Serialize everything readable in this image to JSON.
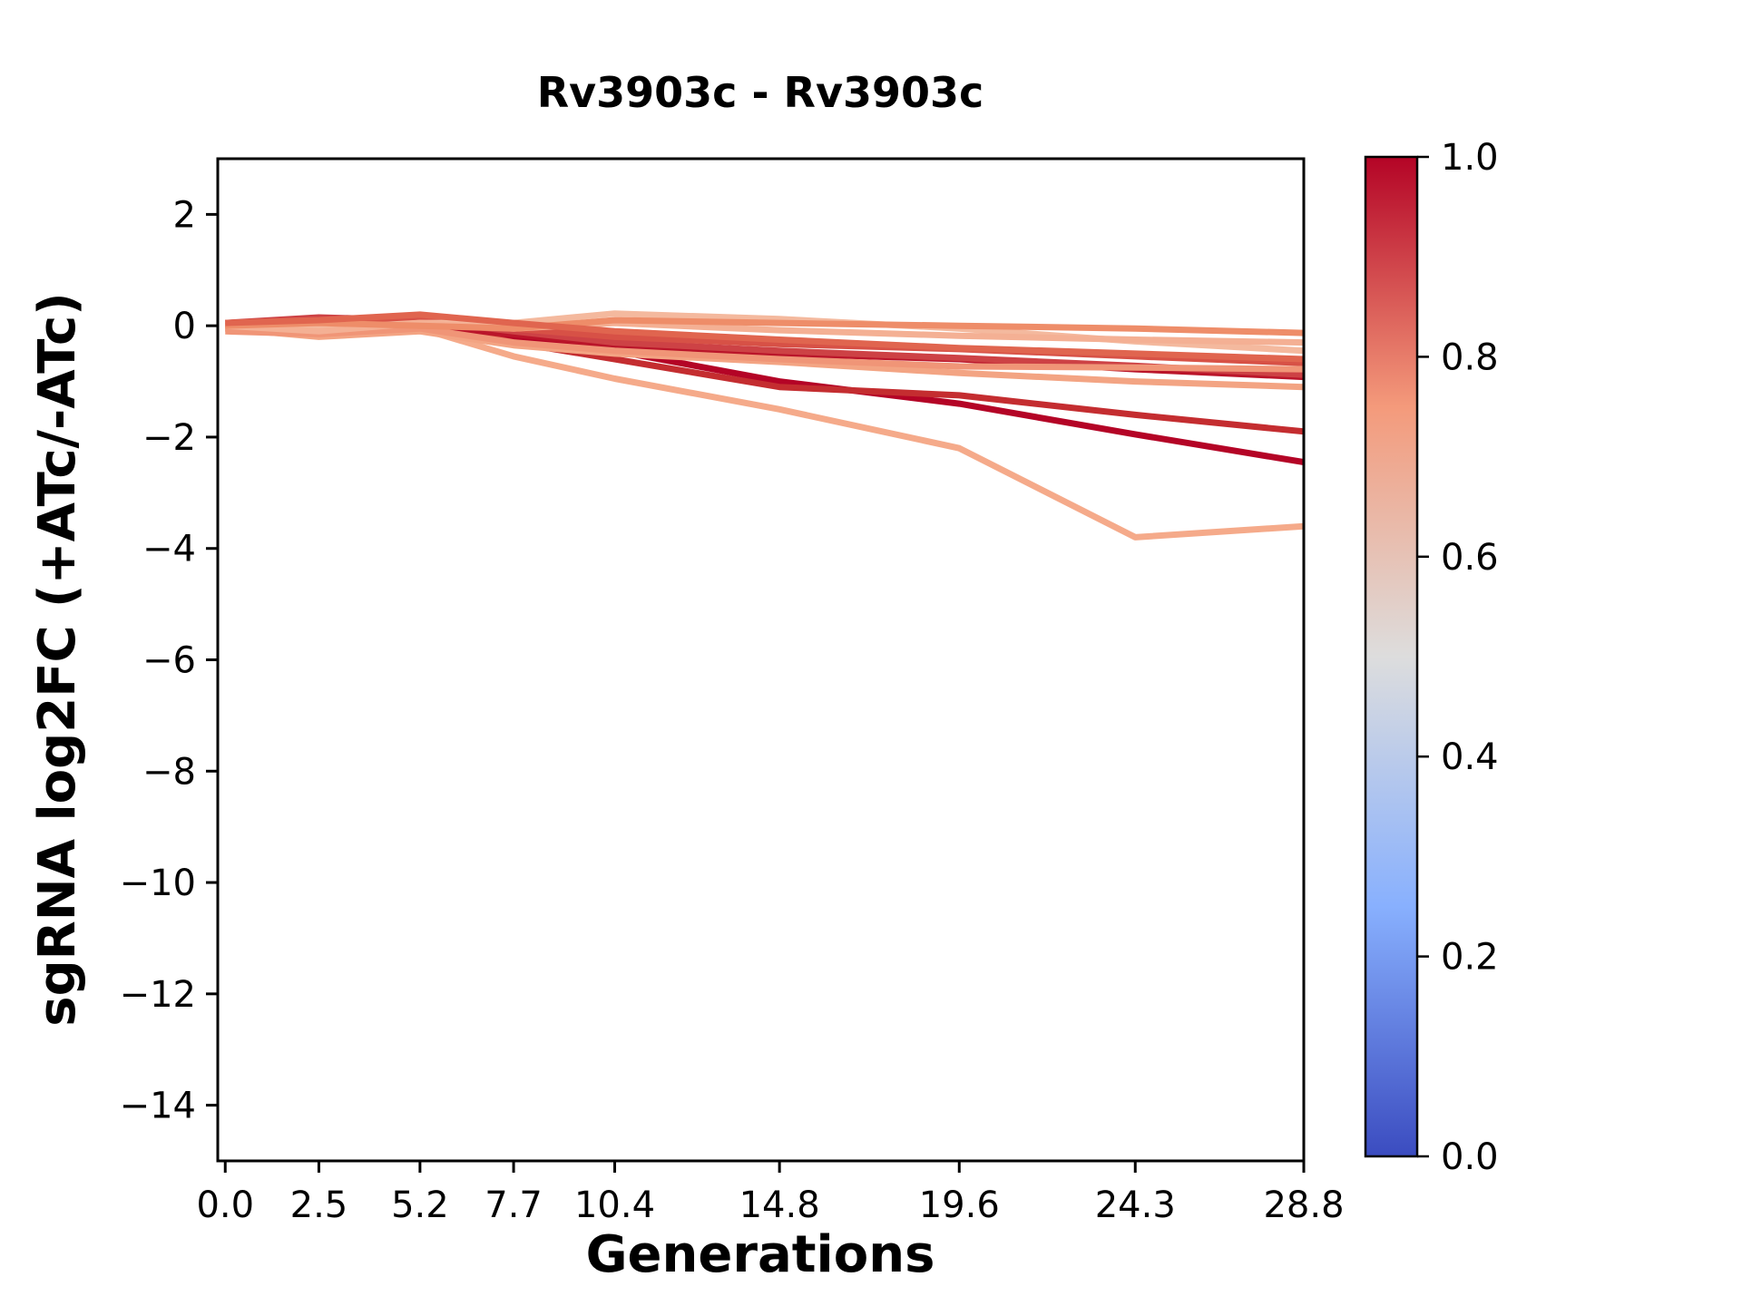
{
  "chart_data": {
    "type": "line",
    "title": "Rv3903c - Rv3903c",
    "xlabel": "Generations",
    "ylabel": "sgRNA log2FC (+ATc/-ATc)",
    "xlim": [
      -0.2,
      28.8
    ],
    "ylim": [
      -15,
      3
    ],
    "grid": false,
    "legend": "none",
    "x": [
      0.0,
      2.5,
      5.2,
      7.7,
      10.4,
      14.8,
      19.6,
      24.3,
      28.8
    ],
    "xticks": {
      "values": [
        0.0,
        2.5,
        5.2,
        7.7,
        10.4,
        14.8,
        19.6,
        24.3,
        28.8
      ],
      "labels": [
        "0.0",
        "2.5",
        "5.2",
        "7.7",
        "10.4",
        "14.8",
        "19.6",
        "24.3",
        "28.8"
      ]
    },
    "yticks": {
      "values": [
        2,
        0,
        -2,
        -4,
        -6,
        -8,
        -10,
        -12,
        -14
      ],
      "labels": [
        "2",
        "0",
        "−2",
        "−4",
        "−6",
        "−8",
        "−10",
        "−12",
        "−14"
      ]
    },
    "series": [
      {
        "colormap_value": 1.0,
        "color": "#b40426",
        "y": [
          0.0,
          0.1,
          0.05,
          -0.2,
          -0.45,
          -1.0,
          -1.4,
          -1.95,
          -2.45
        ]
      },
      {
        "colormap_value": 0.93,
        "color": "#c42d30",
        "y": [
          -0.05,
          0.05,
          0.1,
          -0.3,
          -0.6,
          -1.1,
          -1.25,
          -1.6,
          -1.9
        ]
      },
      {
        "colormap_value": 0.66,
        "color": "#f5aa8a",
        "y": [
          0.0,
          -0.15,
          -0.05,
          -0.55,
          -0.95,
          -1.5,
          -2.2,
          -3.8,
          -3.6
        ]
      },
      {
        "colormap_value": 0.68,
        "color": "#f3a483",
        "y": [
          -0.05,
          -0.2,
          -0.1,
          -0.35,
          -0.5,
          -0.65,
          -0.85,
          -1.0,
          -1.1
        ]
      },
      {
        "colormap_value": 0.97,
        "color": "#ba152a",
        "y": [
          0.0,
          0.1,
          0.0,
          -0.15,
          -0.35,
          -0.5,
          -0.6,
          -0.78,
          -0.92
        ]
      },
      {
        "colormap_value": 0.9,
        "color": "#cd4245",
        "y": [
          0.05,
          0.15,
          0.1,
          -0.1,
          -0.3,
          -0.45,
          -0.58,
          -0.72,
          -0.88
        ]
      },
      {
        "colormap_value": 0.87,
        "color": "#d75146",
        "y": [
          0.0,
          0.1,
          0.15,
          -0.05,
          -0.2,
          -0.33,
          -0.42,
          -0.55,
          -0.67
        ]
      },
      {
        "colormap_value": 0.73,
        "color": "#f09577",
        "y": [
          -0.1,
          -0.15,
          -0.05,
          -0.3,
          -0.45,
          -0.6,
          -0.73,
          -0.75,
          -0.78
        ]
      },
      {
        "colormap_value": 0.62,
        "color": "#f4b99e",
        "y": [
          0.05,
          -0.05,
          0.05,
          0.05,
          0.22,
          0.12,
          -0.05,
          -0.28,
          -0.45
        ]
      },
      {
        "colormap_value": 0.64,
        "color": "#f4b094",
        "y": [
          0.0,
          -0.1,
          0.05,
          -0.05,
          0.05,
          -0.08,
          -0.18,
          -0.25,
          -0.3
        ]
      },
      {
        "colormap_value": 0.76,
        "color": "#ee8d69",
        "y": [
          0.0,
          0.05,
          0.0,
          -0.05,
          0.1,
          0.05,
          0.0,
          -0.05,
          -0.13
        ]
      },
      {
        "colormap_value": 0.84,
        "color": "#e0654f",
        "y": [
          0.05,
          0.1,
          0.2,
          0.05,
          -0.1,
          -0.25,
          -0.4,
          -0.5,
          -0.6
        ]
      }
    ],
    "colorbar": {
      "position": "right",
      "range": [
        0.0,
        1.0
      ],
      "ticks": {
        "values": [
          0.0,
          0.2,
          0.4,
          0.6,
          0.8,
          1.0
        ],
        "labels": [
          "0.0",
          "0.2",
          "0.4",
          "0.6",
          "0.8",
          "1.0"
        ]
      },
      "colormap": "coolwarm",
      "gradient_stops": [
        {
          "offset": 0.0,
          "color": "#3b4cc0"
        },
        {
          "offset": 0.25,
          "color": "#88b0fe"
        },
        {
          "offset": 0.5,
          "color": "#dddddd"
        },
        {
          "offset": 0.75,
          "color": "#f49a7b"
        },
        {
          "offset": 1.0,
          "color": "#b40426"
        }
      ]
    },
    "style": {
      "line_width": 7,
      "axis_color": "#000000",
      "background": "#ffffff"
    }
  }
}
